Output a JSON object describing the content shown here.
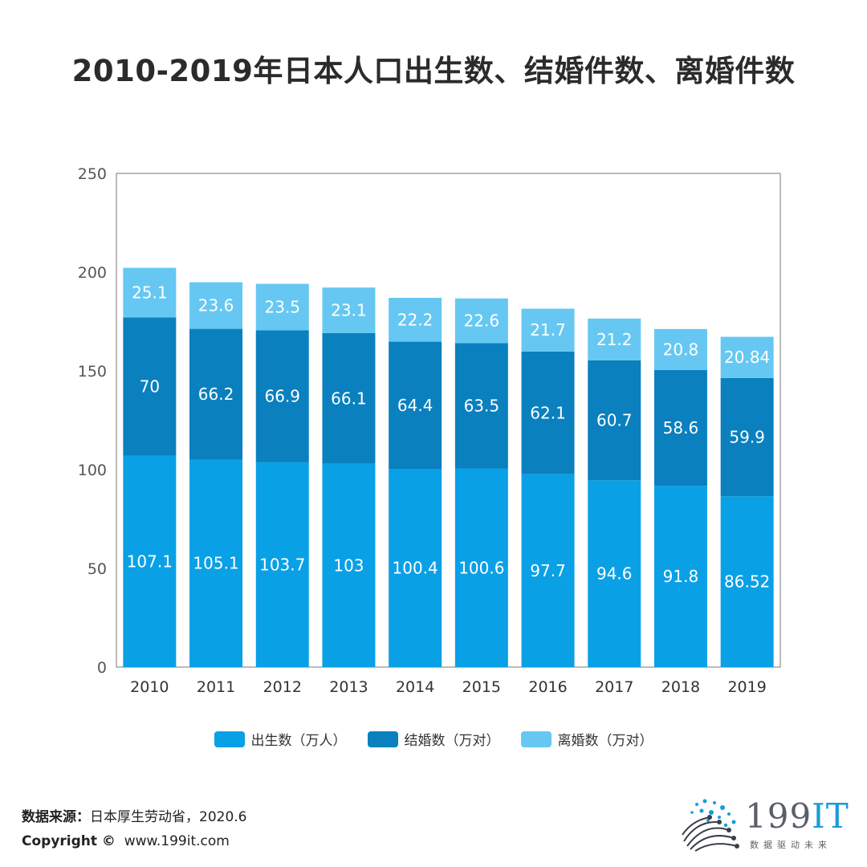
{
  "title": "2010-2019年日本人口出生数、结婚件数、离婚件数",
  "colors": {
    "births": "#0aa0e6",
    "marriages": "#0a80bf",
    "divorces": "#66c8f2"
  },
  "chart_data": {
    "type": "bar",
    "stacked": true,
    "categories": [
      "2010",
      "2011",
      "2012",
      "2013",
      "2014",
      "2015",
      "2016",
      "2017",
      "2018",
      "2019"
    ],
    "series": [
      {
        "name": "出生数（万人）",
        "values": [
          107.1,
          105.1,
          103.7,
          103,
          100.4,
          100.6,
          97.7,
          94.6,
          91.8,
          86.52
        ]
      },
      {
        "name": "结婚数（万对）",
        "values": [
          70,
          66.2,
          66.9,
          66.1,
          64.4,
          63.5,
          62.1,
          60.7,
          58.6,
          59.9
        ]
      },
      {
        "name": "离婚数（万对）",
        "values": [
          25.1,
          23.6,
          23.5,
          23.1,
          22.2,
          22.6,
          21.7,
          21.2,
          20.8,
          20.84
        ]
      }
    ],
    "yticks": [
      0,
      50,
      100,
      150,
      200,
      250
    ],
    "ylim": [
      0,
      250
    ],
    "legend_position": "bottom-center"
  },
  "footer": {
    "source_label": "数据来源：",
    "source_text": "日本厚生劳动省，2020.6",
    "copyright_label": "Copyright ©",
    "copyright_text": "www.199it.com"
  },
  "logo": {
    "text_main": "199",
    "text_it": "IT",
    "subtitle": "数据驱动未来"
  }
}
